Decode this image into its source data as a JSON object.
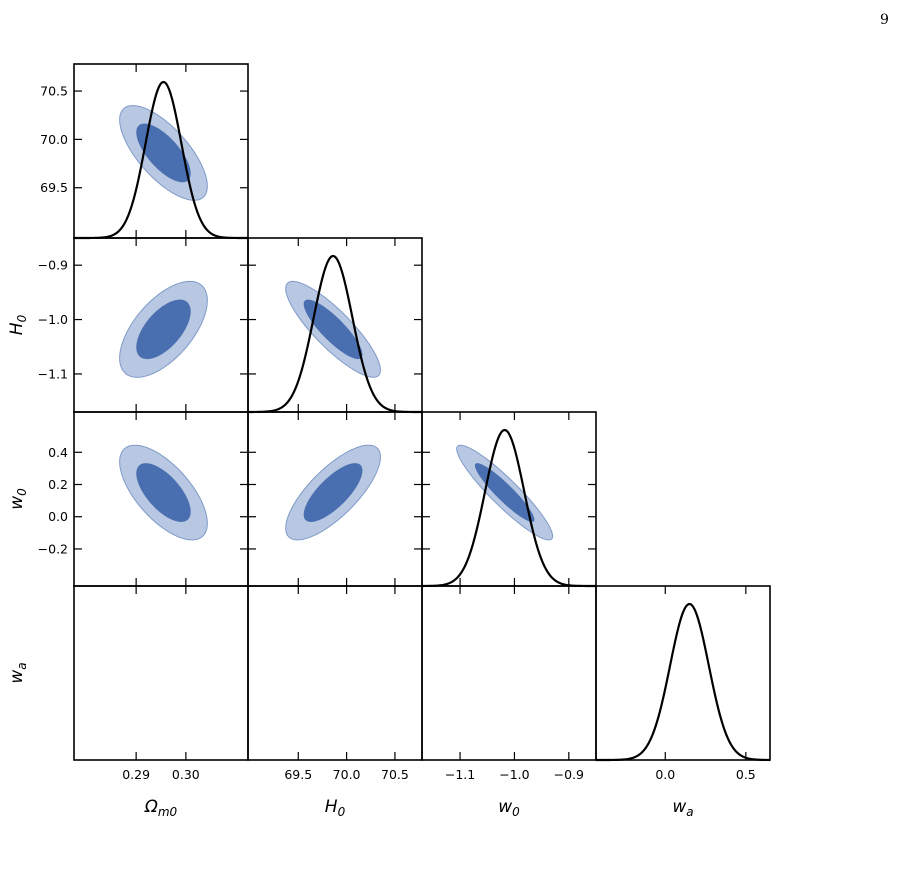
{
  "page_number": "9",
  "colors": {
    "contour_inner": "#4a6fb0",
    "contour_outer": "#b8c8e2",
    "contour_edge": "#7f9ac8",
    "curve": "#000000"
  },
  "chart_data": {
    "type": "corner",
    "parameters": [
      {
        "key": "Om",
        "label": "Ωm0",
        "range": [
          0.2775,
          0.3125
        ],
        "ticks": [
          0.29,
          0.3
        ],
        "tick_labels": [
          "0.29",
          "0.30"
        ],
        "mean": 0.2955,
        "sigma": 0.0036
      },
      {
        "key": "H0",
        "label": "H0",
        "range": [
          68.98,
          70.78
        ],
        "ticks": [
          69.5,
          70.0,
          70.5
        ],
        "tick_labels": [
          "69.5",
          "70.0",
          "70.5"
        ],
        "mean": 69.86,
        "sigma": 0.2
      },
      {
        "key": "w0",
        "label": "w0",
        "range": [
          -1.17,
          -0.85
        ],
        "ticks": [
          -1.1,
          -1.0,
          -0.9
        ],
        "tick_labels": [
          "−1.1",
          "−1.0",
          "−0.9"
        ],
        "mean": -1.018,
        "sigma": 0.036
      },
      {
        "key": "wa",
        "label": "wa",
        "range": [
          -0.43,
          0.65
        ],
        "ticks": [
          0.0,
          0.5
        ],
        "tick_labels": [
          "0.0",
          "0.5"
        ],
        "y_ticks": [
          -0.2,
          0.0,
          0.2,
          0.4
        ],
        "y_tick_labels": [
          "−0.2",
          "0.0",
          "0.2",
          "0.4"
        ],
        "mean": 0.15,
        "sigma": 0.12
      }
    ],
    "correlations": {
      "Om_H0": -0.7,
      "Om_w0": 0.6,
      "H0_w0": -0.85,
      "Om_wa": -0.65,
      "H0_wa": 0.75,
      "w0_wa": -0.92
    },
    "contour_levels": [
      "68%",
      "95%"
    ]
  }
}
